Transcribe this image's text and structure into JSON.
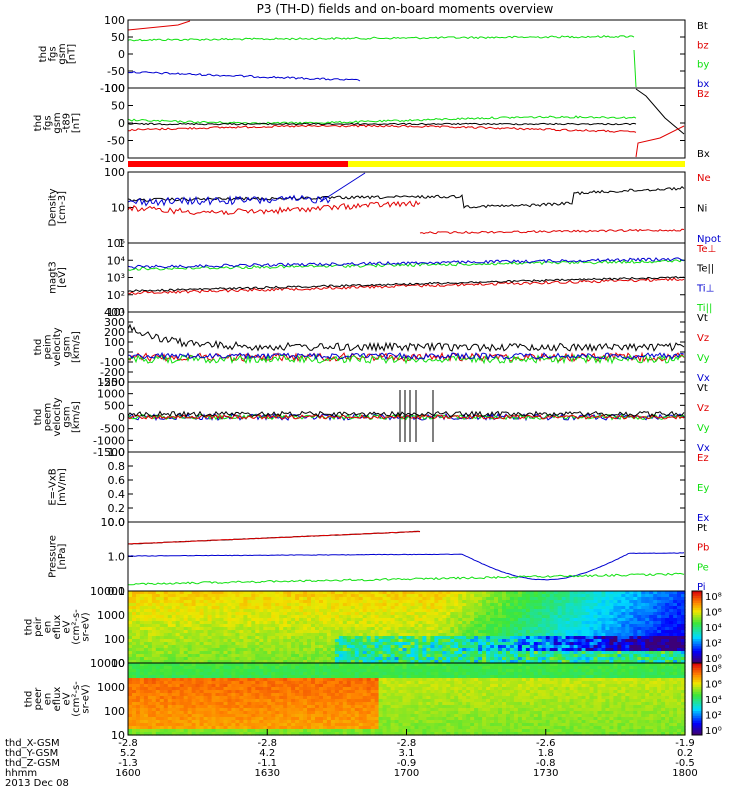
{
  "title": "P3 (TH-D) fields and on-board moments overview",
  "colors": {
    "black": "#000000",
    "red": "#e00000",
    "green": "#10e010",
    "blue": "#0000d0",
    "yellow": "#ffff00",
    "bar_red": "#ff0000"
  },
  "chart_data": [
    {
      "type": "line",
      "id": "fgs_gsm",
      "ylabel": [
        "thd",
        "fgs",
        "gsm",
        "[nT]"
      ],
      "ylim": [
        -100,
        100
      ],
      "yticks": [
        "100",
        "50",
        "0",
        "-50",
        "-100"
      ],
      "legend": [
        "Bt",
        "bz",
        "by",
        "bx"
      ]
    },
    {
      "type": "line",
      "id": "fgs_gsm_t89",
      "ylabel": [
        "thd",
        "fgs",
        "gsm",
        "-t89",
        "[nT]"
      ],
      "ylim": [
        -120,
        100
      ],
      "yticks": [
        "100",
        "50",
        "0",
        "-50",
        "-100"
      ],
      "legend": [
        "Bz",
        "Bx"
      ]
    },
    {
      "type": "line",
      "id": "density",
      "ylabel": [
        "Density",
        "[cm-3]"
      ],
      "scale": "log",
      "yticks": [
        "100",
        "10",
        "1"
      ],
      "legend": [
        "Ne",
        "Ni",
        "Npot"
      ]
    },
    {
      "type": "line",
      "id": "temperature",
      "ylabel": [
        "magt3",
        "[eV]"
      ],
      "scale": "log",
      "yticks": [
        "10⁵",
        "10⁴",
        "10³",
        "10²",
        "10¹"
      ],
      "legend": [
        "Te⊥",
        "Te||",
        "Ti⊥",
        "Ti||"
      ]
    },
    {
      "type": "line",
      "id": "ion_velocity",
      "ylabel": [
        "thd",
        "peim",
        "velocity",
        "gsm",
        "[km/s]"
      ],
      "ylim": [
        -250,
        400
      ],
      "yticks": [
        "400",
        "300",
        "200",
        "100",
        "0",
        "-100",
        "-200",
        "-250"
      ],
      "legend": [
        "Vt",
        "Vz",
        "Vy",
        "Vx"
      ]
    },
    {
      "type": "line",
      "id": "electron_velocity",
      "ylabel": [
        "thd",
        "peem",
        "velocity",
        "gsm",
        "[km/s]"
      ],
      "ylim": [
        -1500,
        1500
      ],
      "yticks": [
        "1500",
        "1000",
        "500",
        "0",
        "-500",
        "-1000",
        "-1500"
      ],
      "legend": [
        "Vt",
        "Vz",
        "Vy",
        "Vx"
      ]
    },
    {
      "type": "line",
      "id": "efield",
      "ylabel": [
        "E=-VxB",
        "[mV/m]"
      ],
      "ylim": [
        0,
        1
      ],
      "yticks": [
        "1.0",
        "0.8",
        "0.6",
        "0.4",
        "0.2",
        "0.0"
      ],
      "legend": [
        "Ez",
        "Ey",
        "Ex"
      ]
    },
    {
      "type": "line",
      "id": "pressure",
      "ylabel": [
        "Pressure",
        "[nPa]"
      ],
      "scale": "log",
      "yticks": [
        "10.0",
        "1.0",
        "0.1"
      ],
      "legend": [
        "Pt",
        "Pb",
        "Pe",
        "Pi"
      ]
    },
    {
      "type": "heatmap",
      "id": "ion_spectrogram",
      "ylabel": [
        "thd",
        "peir",
        "en",
        "eflux",
        "eV",
        "(cm²-s-",
        "sr-eV)"
      ],
      "yticks": [
        "10000",
        "1000",
        "100",
        "10"
      ],
      "colorbar": [
        "10⁸",
        "10⁶",
        "10⁴",
        "10²",
        "10⁰"
      ]
    },
    {
      "type": "heatmap",
      "id": "electron_spectrogram",
      "ylabel": [
        "thd",
        "peer",
        "en",
        "eflux",
        "eV",
        "(cm²-s-",
        "sr-eV)"
      ],
      "yticks": [
        "10000",
        "1000",
        "100",
        "10"
      ],
      "colorbar": [
        "10⁸",
        "10⁶",
        "10⁴",
        "10²",
        "10⁰"
      ]
    }
  ],
  "xaxis": {
    "rows": [
      {
        "name": "thd_X-GSM",
        "values": [
          "-2.8",
          "-2.8",
          "-2.8",
          "-2.6",
          "-1.9"
        ]
      },
      {
        "name": "thd_Y-GSM",
        "values": [
          "5.2",
          "4.2",
          "3.1",
          "1.8",
          "0.2"
        ]
      },
      {
        "name": "thd_Z-GSM",
        "values": [
          "-1.3",
          "-1.1",
          "-0.9",
          "-0.8",
          "-0.5"
        ]
      },
      {
        "name": "hhmm",
        "values": [
          "1600",
          "1630",
          "1700",
          "1730",
          "1800"
        ]
      }
    ],
    "date": "2013 Dec 08"
  }
}
